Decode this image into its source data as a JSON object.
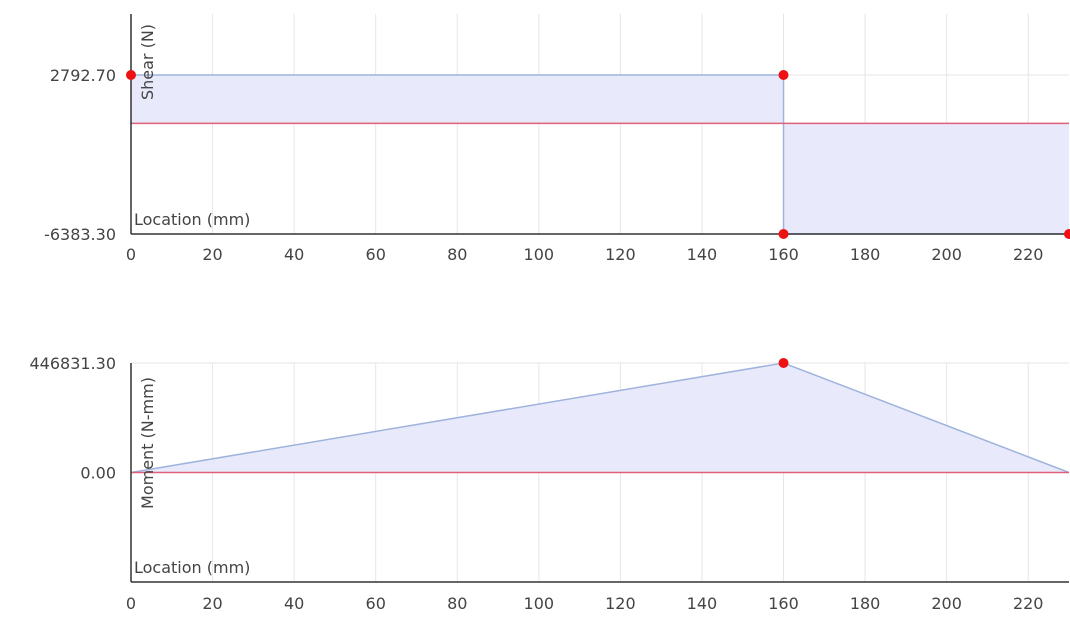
{
  "chart_data": [
    {
      "type": "area",
      "ylabel": "Shear (N)",
      "xlabel": "Location (mm)",
      "x_ticks": [
        "0",
        "20",
        "40",
        "60",
        "80",
        "100",
        "120",
        "140",
        "160",
        "180",
        "200",
        "220"
      ],
      "y_ticks": [
        "2792.70",
        "-6383.30"
      ],
      "xlim": [
        0,
        230
      ],
      "ylim": [
        -6383.3,
        2792.7
      ],
      "grid": true,
      "series": [
        {
          "x": [
            0,
            160,
            160,
            230
          ],
          "y": [
            2792.7,
            2792.7,
            -6383.3,
            -6383.3
          ]
        }
      ],
      "markers": [
        {
          "x": 0,
          "y": 2792.7
        },
        {
          "x": 160,
          "y": 2792.7
        },
        {
          "x": 160,
          "y": -6383.3
        },
        {
          "x": 230,
          "y": -6383.3
        }
      ]
    },
    {
      "type": "area",
      "ylabel": "Moment (N-mm)",
      "xlabel": "Location (mm)",
      "x_ticks": [
        "0",
        "20",
        "40",
        "60",
        "80",
        "100",
        "120",
        "140",
        "160",
        "180",
        "200",
        "220"
      ],
      "y_ticks": [
        "446831.30",
        "0.00"
      ],
      "xlim": [
        0,
        230
      ],
      "ylim": [
        -446831.3,
        446831.3
      ],
      "grid": true,
      "series": [
        {
          "x": [
            0,
            160,
            230
          ],
          "y": [
            0,
            446831.3,
            0
          ]
        }
      ],
      "markers": [
        {
          "x": 160,
          "y": 446831.3
        }
      ]
    }
  ],
  "colors": {
    "fill": "#e8eafb",
    "line": "#9fb3dc",
    "zero_line": "#e0607a",
    "marker": "#ee1111",
    "grid": "#e6e6e6",
    "axis": "#333333"
  }
}
